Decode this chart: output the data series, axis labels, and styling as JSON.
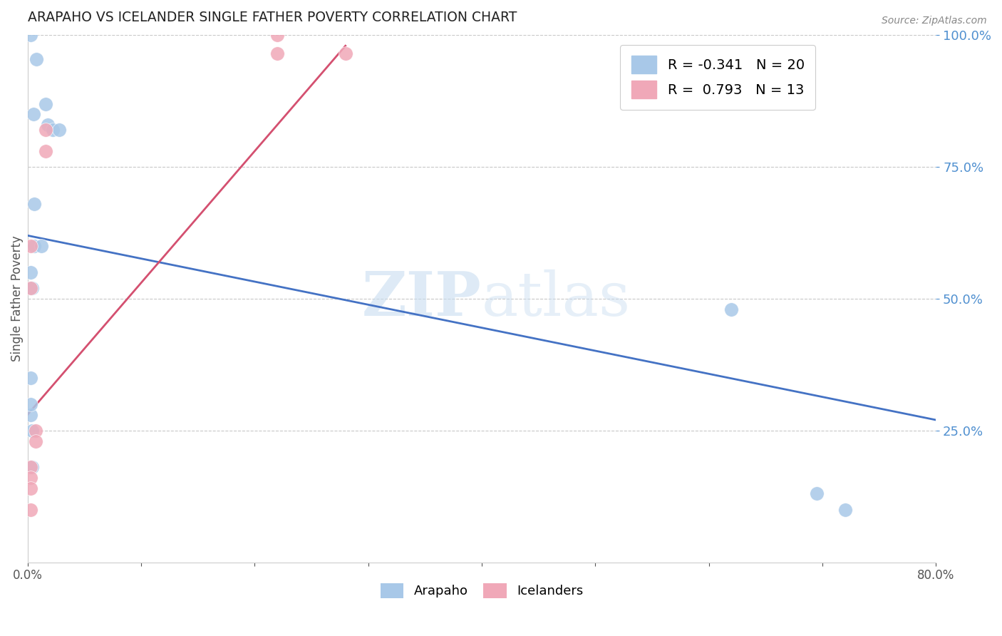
{
  "title": "ARAPAHO VS ICELANDER SINGLE FATHER POVERTY CORRELATION CHART",
  "source": "Source: ZipAtlas.com",
  "ylabel": "Single Father Poverty",
  "r_arapaho": -0.341,
  "n_arapaho": 20,
  "r_icelander": 0.793,
  "n_icelander": 13,
  "watermark_zip": "ZIP",
  "watermark_atlas": "atlas",
  "arapaho_color": "#a8c8e8",
  "icelander_color": "#f0a8b8",
  "arapaho_line_color": "#4472c4",
  "icelander_line_color": "#d45070",
  "background_color": "#ffffff",
  "grid_color": "#c8c8c8",
  "right_axis_color": "#5090d0",
  "xlim": [
    0.0,
    0.8
  ],
  "ylim": [
    0.0,
    1.0
  ],
  "xticks": [
    0.0,
    0.1,
    0.2,
    0.3,
    0.4,
    0.5,
    0.6,
    0.7,
    0.8
  ],
  "xtick_labels": [
    "0.0%",
    "",
    "",
    "",
    "",
    "",
    "",
    "",
    "80.0%"
  ],
  "yticks_right": [
    0.25,
    0.5,
    0.75,
    1.0
  ],
  "arapaho_x": [
    0.003,
    0.008,
    0.016,
    0.005,
    0.018,
    0.022,
    0.028,
    0.006,
    0.006,
    0.012,
    0.003,
    0.004,
    0.004,
    0.004,
    0.003,
    0.003,
    0.003,
    0.62,
    0.695,
    0.72
  ],
  "arapaho_y": [
    1.0,
    0.955,
    0.87,
    0.85,
    0.83,
    0.82,
    0.82,
    0.68,
    0.6,
    0.6,
    0.55,
    0.52,
    0.25,
    0.18,
    0.35,
    0.28,
    0.3,
    0.48,
    0.13,
    0.1
  ],
  "icelander_x": [
    0.003,
    0.003,
    0.016,
    0.016,
    0.003,
    0.003,
    0.003,
    0.003,
    0.007,
    0.007,
    0.22,
    0.22,
    0.28
  ],
  "icelander_y": [
    0.6,
    0.52,
    0.82,
    0.78,
    0.18,
    0.16,
    0.14,
    0.1,
    0.25,
    0.23,
    1.0,
    0.965,
    0.965
  ],
  "arapaho_line_x": [
    0.0,
    0.8
  ],
  "arapaho_line_y": [
    0.62,
    0.27
  ],
  "icelander_line_x": [
    0.0,
    0.28
  ],
  "icelander_line_y": [
    0.28,
    0.98
  ]
}
